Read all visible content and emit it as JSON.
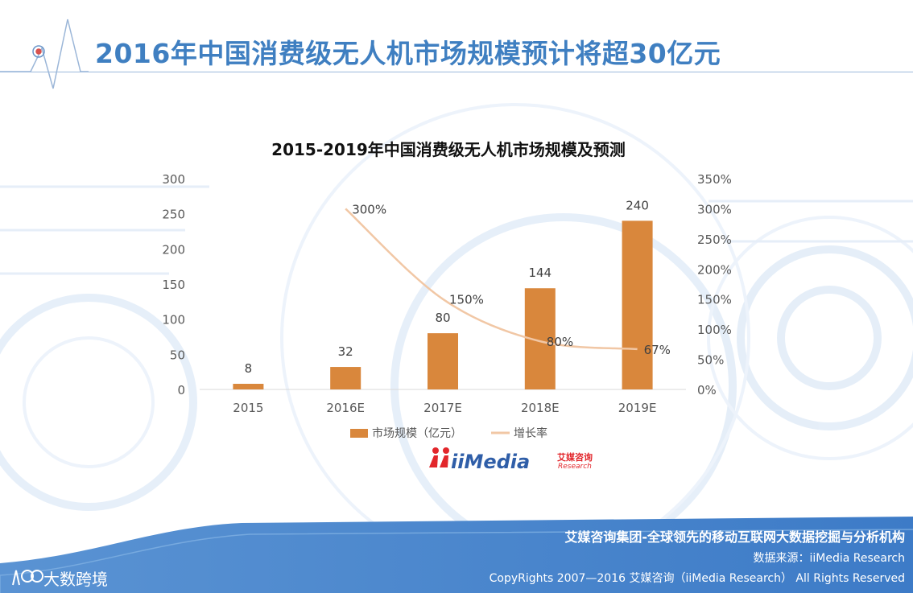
{
  "page": {
    "title": "2016年中国消费级无人机市场规模预计将超30亿元"
  },
  "chart_data": {
    "type": "bar",
    "title": "2015-2019年中国消费级无人机市场规模及预测",
    "categories": [
      "2015",
      "2016E",
      "2017E",
      "2018E",
      "2019E"
    ],
    "series": [
      {
        "name": "市场规模（亿元）",
        "type": "bar",
        "axis": "left",
        "values": [
          8,
          32,
          80,
          144,
          240
        ],
        "color": "#d9873c"
      },
      {
        "name": "增长率",
        "type": "line",
        "axis": "right",
        "smooth": true,
        "values": [
          null,
          300,
          150,
          80,
          67
        ],
        "color": "#f1c7a5"
      }
    ],
    "data_labels_bar": [
      "8",
      "32",
      "80",
      "144",
      "240"
    ],
    "data_labels_line": [
      "",
      "300%",
      "150%",
      "80%",
      "67%"
    ],
    "y_left": {
      "lim": [
        0,
        300
      ],
      "ticks": [
        "0",
        "50",
        "100",
        "150",
        "200",
        "250",
        "300"
      ]
    },
    "y_right": {
      "lim": [
        0,
        350
      ],
      "ticks": [
        "0%",
        "50%",
        "100%",
        "150%",
        "200%",
        "250%",
        "300%",
        "350%"
      ]
    },
    "legend_position": "bottom",
    "grid": false
  },
  "logo": {
    "brand": "iiMedia",
    "cn": "艾媒咨询",
    "sub": "Research"
  },
  "footer": {
    "line1": "艾媒咨询集团-全球领先的移动互联网大数据挖掘与分析机构",
    "line2": "数据来源：iiMedia Research",
    "line3": "CopyRights 2007—2016 艾媒咨询（iiMedia Research） All Rights Reserved"
  },
  "watermark": {
    "text": "大数跨境"
  }
}
